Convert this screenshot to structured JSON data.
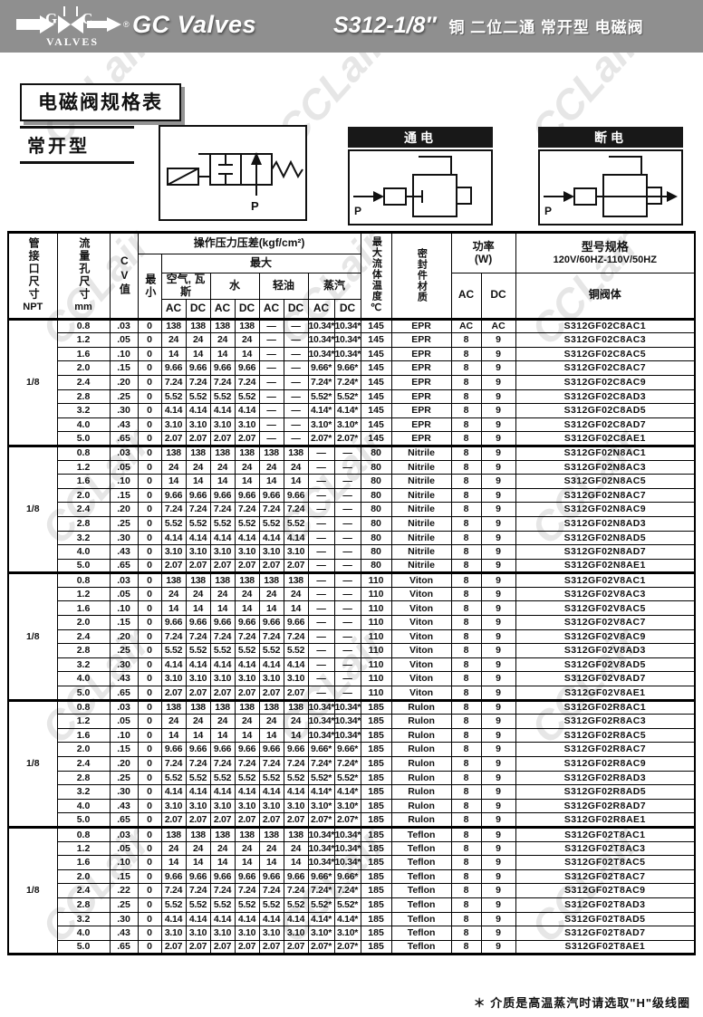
{
  "watermark": "CCLair",
  "banner": {
    "logo_g": "G",
    "logo_c": "C",
    "logo_valves": "VALVES",
    "logo_reg": "®",
    "brand": "GC Valves",
    "model": "S312-1/8″",
    "subtitle": "铜  二位二通 常开型 电磁阀"
  },
  "section": {
    "spec_table_title": "电磁阀规格表",
    "valve_type": "常开型",
    "port_label": "P",
    "energized_label": "通电",
    "deenergized_label": "断电"
  },
  "table": {
    "headers": {
      "port_size": "管接口尺寸",
      "port_size_unit": "NPT",
      "orifice": "流量孔尺寸",
      "orifice_unit": "mm",
      "cv": "CV值",
      "pressure_title": "操作压力压差(kgf/cm²)",
      "min": "最小",
      "max": "最大",
      "media": [
        "空气, 瓦斯",
        "水",
        "轻油",
        "蒸汽"
      ],
      "ac": "AC",
      "dc": "DC",
      "max_temp": "最大流体温度",
      "temp_unit": "℃",
      "seal": "密封件材质",
      "power_line1": "功率",
      "power_line2": "(W)",
      "model_title": "型号规格",
      "model_subtitle": "120V/60HZ-110V/50HZ",
      "body": "铜阀体"
    },
    "groups": [
      {
        "npt": "1/8",
        "rows": [
          [
            "0.8",
            ".03",
            "0",
            "138",
            "138",
            "138",
            "138",
            "—",
            "—",
            "10.34*",
            "10.34*",
            "145",
            "EPR",
            "AC",
            "AC",
            "S312GF02C8AC1"
          ],
          [
            "1.2",
            ".05",
            "0",
            "24",
            "24",
            "24",
            "24",
            "—",
            "—",
            "10.34*",
            "10.34*",
            "145",
            "EPR",
            "8",
            "9",
            "S312GF02C8AC3"
          ],
          [
            "1.6",
            ".10",
            "0",
            "14",
            "14",
            "14",
            "14",
            "—",
            "—",
            "10.34*",
            "10.34*",
            "145",
            "EPR",
            "8",
            "9",
            "S312GF02C8AC5"
          ],
          [
            "2.0",
            ".15",
            "0",
            "9.66",
            "9.66",
            "9.66",
            "9.66",
            "—",
            "—",
            "9.66*",
            "9.66*",
            "145",
            "EPR",
            "8",
            "9",
            "S312GF02C8AC7"
          ],
          [
            "2.4",
            ".20",
            "0",
            "7.24",
            "7.24",
            "7.24",
            "7.24",
            "—",
            "—",
            "7.24*",
            "7.24*",
            "145",
            "EPR",
            "8",
            "9",
            "S312GF02C8AC9"
          ],
          [
            "2.8",
            ".25",
            "0",
            "5.52",
            "5.52",
            "5.52",
            "5.52",
            "—",
            "—",
            "5.52*",
            "5.52*",
            "145",
            "EPR",
            "8",
            "9",
            "S312GF02C8AD3"
          ],
          [
            "3.2",
            ".30",
            "0",
            "4.14",
            "4.14",
            "4.14",
            "4.14",
            "—",
            "—",
            "4.14*",
            "4.14*",
            "145",
            "EPR",
            "8",
            "9",
            "S312GF02C8AD5"
          ],
          [
            "4.0",
            ".43",
            "0",
            "3.10",
            "3.10",
            "3.10",
            "3.10",
            "—",
            "—",
            "3.10*",
            "3.10*",
            "145",
            "EPR",
            "8",
            "9",
            "S312GF02C8AD7"
          ],
          [
            "5.0",
            ".65",
            "0",
            "2.07",
            "2.07",
            "2.07",
            "2.07",
            "—",
            "—",
            "2.07*",
            "2.07*",
            "145",
            "EPR",
            "8",
            "9",
            "S312GF02C8AE1"
          ]
        ]
      },
      {
        "npt": "1/8",
        "rows": [
          [
            "0.8",
            ".03",
            "0",
            "138",
            "138",
            "138",
            "138",
            "138",
            "138",
            "—",
            "—",
            "80",
            "Nitrile",
            "8",
            "9",
            "S312GF02N8AC1"
          ],
          [
            "1.2",
            ".05",
            "0",
            "24",
            "24",
            "24",
            "24",
            "24",
            "24",
            "—",
            "—",
            "80",
            "Nitrile",
            "8",
            "9",
            "S312GF02N8AC3"
          ],
          [
            "1.6",
            ".10",
            "0",
            "14",
            "14",
            "14",
            "14",
            "14",
            "14",
            "—",
            "—",
            "80",
            "Nitrile",
            "8",
            "9",
            "S312GF02N8AC5"
          ],
          [
            "2.0",
            ".15",
            "0",
            "9.66",
            "9.66",
            "9.66",
            "9.66",
            "9.66",
            "9.66",
            "—",
            "—",
            "80",
            "Nitrile",
            "8",
            "9",
            "S312GF02N8AC7"
          ],
          [
            "2.4",
            ".20",
            "0",
            "7.24",
            "7.24",
            "7.24",
            "7.24",
            "7.24",
            "7.24",
            "—",
            "—",
            "80",
            "Nitrile",
            "8",
            "9",
            "S312GF02N8AC9"
          ],
          [
            "2.8",
            ".25",
            "0",
            "5.52",
            "5.52",
            "5.52",
            "5.52",
            "5.52",
            "5.52",
            "—",
            "—",
            "80",
            "Nitrile",
            "8",
            "9",
            "S312GF02N8AD3"
          ],
          [
            "3.2",
            ".30",
            "0",
            "4.14",
            "4.14",
            "4.14",
            "4.14",
            "4.14",
            "4.14",
            "—",
            "—",
            "80",
            "Nitrile",
            "8",
            "9",
            "S312GF02N8AD5"
          ],
          [
            "4.0",
            ".43",
            "0",
            "3.10",
            "3.10",
            "3.10",
            "3.10",
            "3.10",
            "3.10",
            "—",
            "—",
            "80",
            "Nitrile",
            "8",
            "9",
            "S312GF02N8AD7"
          ],
          [
            "5.0",
            ".65",
            "0",
            "2.07",
            "2.07",
            "2.07",
            "2.07",
            "2.07",
            "2.07",
            "—",
            "—",
            "80",
            "Nitrile",
            "8",
            "9",
            "S312GF02N8AE1"
          ]
        ]
      },
      {
        "npt": "1/8",
        "rows": [
          [
            "0.8",
            ".03",
            "0",
            "138",
            "138",
            "138",
            "138",
            "138",
            "138",
            "—",
            "—",
            "110",
            "Viton",
            "8",
            "9",
            "S312GF02V8AC1"
          ],
          [
            "1.2",
            ".05",
            "0",
            "24",
            "24",
            "24",
            "24",
            "24",
            "24",
            "—",
            "—",
            "110",
            "Viton",
            "8",
            "9",
            "S312GF02V8AC3"
          ],
          [
            "1.6",
            ".10",
            "0",
            "14",
            "14",
            "14",
            "14",
            "14",
            "14",
            "—",
            "—",
            "110",
            "Viton",
            "8",
            "9",
            "S312GF02V8AC5"
          ],
          [
            "2.0",
            ".15",
            "0",
            "9.66",
            "9.66",
            "9.66",
            "9.66",
            "9.66",
            "9.66",
            "—",
            "—",
            "110",
            "Viton",
            "8",
            "9",
            "S312GF02V8AC7"
          ],
          [
            "2.4",
            ".20",
            "0",
            "7.24",
            "7.24",
            "7.24",
            "7.24",
            "7.24",
            "7.24",
            "—",
            "—",
            "110",
            "Viton",
            "8",
            "9",
            "S312GF02V8AC9"
          ],
          [
            "2.8",
            ".25",
            "0",
            "5.52",
            "5.52",
            "5.52",
            "5.52",
            "5.52",
            "5.52",
            "—",
            "—",
            "110",
            "Viton",
            "8",
            "9",
            "S312GF02V8AD3"
          ],
          [
            "3.2",
            ".30",
            "0",
            "4.14",
            "4.14",
            "4.14",
            "4.14",
            "4.14",
            "4.14",
            "—",
            "—",
            "110",
            "Viton",
            "8",
            "9",
            "S312GF02V8AD5"
          ],
          [
            "4.0",
            ".43",
            "0",
            "3.10",
            "3.10",
            "3.10",
            "3.10",
            "3.10",
            "3.10",
            "—",
            "—",
            "110",
            "Viton",
            "8",
            "9",
            "S312GF02V8AD7"
          ],
          [
            "5.0",
            ".65",
            "0",
            "2.07",
            "2.07",
            "2.07",
            "2.07",
            "2.07",
            "2.07",
            "—",
            "—",
            "110",
            "Viton",
            "8",
            "9",
            "S312GF02V8AE1"
          ]
        ]
      },
      {
        "npt": "1/8",
        "rows": [
          [
            "0.8",
            ".03",
            "0",
            "138",
            "138",
            "138",
            "138",
            "138",
            "138",
            "10.34*",
            "10.34*",
            "185",
            "Rulon",
            "8",
            "9",
            "S312GF02R8AC1"
          ],
          [
            "1.2",
            ".05",
            "0",
            "24",
            "24",
            "24",
            "24",
            "24",
            "24",
            "10.34*",
            "10.34*",
            "185",
            "Rulon",
            "8",
            "9",
            "S312GF02R8AC3"
          ],
          [
            "1.6",
            ".10",
            "0",
            "14",
            "14",
            "14",
            "14",
            "14",
            "14",
            "10.34*",
            "10.34*",
            "185",
            "Rulon",
            "8",
            "9",
            "S312GF02R8AC5"
          ],
          [
            "2.0",
            ".15",
            "0",
            "9.66",
            "9.66",
            "9.66",
            "9.66",
            "9.66",
            "9.66",
            "9.66*",
            "9.66*",
            "185",
            "Rulon",
            "8",
            "9",
            "S312GF02R8AC7"
          ],
          [
            "2.4",
            ".20",
            "0",
            "7.24",
            "7.24",
            "7.24",
            "7.24",
            "7.24",
            "7.24",
            "7.24*",
            "7.24*",
            "185",
            "Rulon",
            "8",
            "9",
            "S312GF02R8AC9"
          ],
          [
            "2.8",
            ".25",
            "0",
            "5.52",
            "5.52",
            "5.52",
            "5.52",
            "5.52",
            "5.52",
            "5.52*",
            "5.52*",
            "185",
            "Rulon",
            "8",
            "9",
            "S312GF02R8AD3"
          ],
          [
            "3.2",
            ".30",
            "0",
            "4.14",
            "4.14",
            "4.14",
            "4.14",
            "4.14",
            "4.14",
            "4.14*",
            "4.14*",
            "185",
            "Rulon",
            "8",
            "9",
            "S312GF02R8AD5"
          ],
          [
            "4.0",
            ".43",
            "0",
            "3.10",
            "3.10",
            "3.10",
            "3.10",
            "3.10",
            "3.10",
            "3.10*",
            "3.10*",
            "185",
            "Rulon",
            "8",
            "9",
            "S312GF02R8AD7"
          ],
          [
            "5.0",
            ".65",
            "0",
            "2.07",
            "2.07",
            "2.07",
            "2.07",
            "2.07",
            "2.07",
            "2.07*",
            "2.07*",
            "185",
            "Rulon",
            "8",
            "9",
            "S312GF02R8AE1"
          ]
        ]
      },
      {
        "npt": "1/8",
        "rows": [
          [
            "0.8",
            ".03",
            "0",
            "138",
            "138",
            "138",
            "138",
            "138",
            "138",
            "10.34*",
            "10.34*",
            "185",
            "Teflon",
            "8",
            "9",
            "S312GF02T8AC1"
          ],
          [
            "1.2",
            ".05",
            "0",
            "24",
            "24",
            "24",
            "24",
            "24",
            "24",
            "10.34*",
            "10.34*",
            "185",
            "Teflon",
            "8",
            "9",
            "S312GF02T8AC3"
          ],
          [
            "1.6",
            ".10",
            "0",
            "14",
            "14",
            "14",
            "14",
            "14",
            "14",
            "10.34*",
            "10.34*",
            "185",
            "Teflon",
            "8",
            "9",
            "S312GF02T8AC5"
          ],
          [
            "2.0",
            ".15",
            "0",
            "9.66",
            "9.66",
            "9.66",
            "9.66",
            "9.66",
            "9.66",
            "9.66*",
            "9.66*",
            "185",
            "Teflon",
            "8",
            "9",
            "S312GF02T8AC7"
          ],
          [
            "2.4",
            ".22",
            "0",
            "7.24",
            "7.24",
            "7.24",
            "7.24",
            "7.24",
            "7.24",
            "7.24*",
            "7.24*",
            "185",
            "Teflon",
            "8",
            "9",
            "S312GF02T8AC9"
          ],
          [
            "2.8",
            ".25",
            "0",
            "5.52",
            "5.52",
            "5.52",
            "5.52",
            "5.52",
            "5.52",
            "5.52*",
            "5.52*",
            "185",
            "Teflon",
            "8",
            "9",
            "S312GF02T8AD3"
          ],
          [
            "3.2",
            ".30",
            "0",
            "4.14",
            "4.14",
            "4.14",
            "4.14",
            "4.14",
            "4.14",
            "4.14*",
            "4.14*",
            "185",
            "Teflon",
            "8",
            "9",
            "S312GF02T8AD5"
          ],
          [
            "4.0",
            ".43",
            "0",
            "3.10",
            "3.10",
            "3.10",
            "3.10",
            "3.10",
            "3.10",
            "3.10*",
            "3.10*",
            "185",
            "Teflon",
            "8",
            "9",
            "S312GF02T8AD7"
          ],
          [
            "5.0",
            ".65",
            "0",
            "2.07",
            "2.07",
            "2.07",
            "2.07",
            "2.07",
            "2.07",
            "2.07*",
            "2.07*",
            "185",
            "Teflon",
            "8",
            "9",
            "S312GF02T8AE1"
          ]
        ]
      }
    ]
  },
  "footnote": "＊ 介质是高温蒸汽时请选取\"H\"级线圈"
}
